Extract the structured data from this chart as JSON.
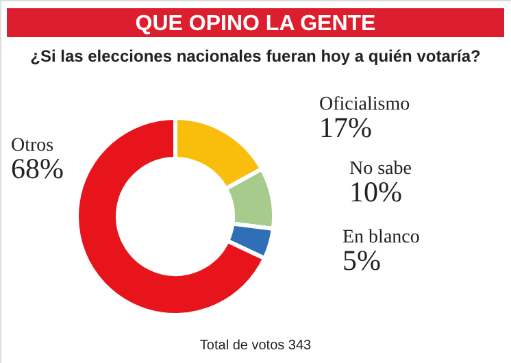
{
  "chart_data": {
    "type": "donut",
    "title": "QUE OPINO LA GENTE",
    "subtitle": "¿Si las elecciones nacionales fueran hoy a quién votaría?",
    "categories": [
      "Oficialismo",
      "No sabe",
      "En blanco",
      "Otros"
    ],
    "values": [
      17,
      10,
      5,
      68
    ],
    "value_labels": [
      "17%",
      "10%",
      "5%",
      "68%"
    ],
    "colors": [
      "#f9bd0c",
      "#a6cb8c",
      "#2f6fb5",
      "#e8141b"
    ],
    "annotations": [
      "Total de votos 343"
    ]
  }
}
